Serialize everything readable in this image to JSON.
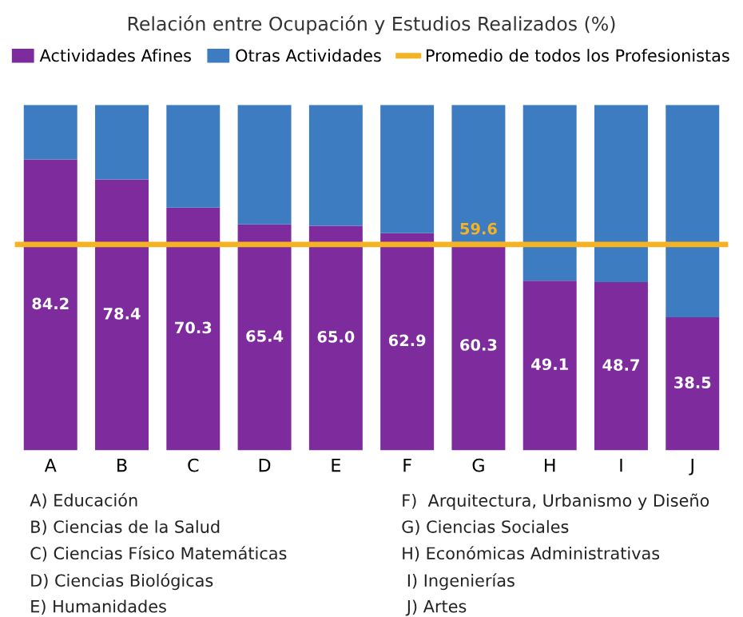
{
  "chart_data": {
    "type": "bar",
    "stacked": true,
    "title": "Relación entre Ocupación y Estudios Realizados (%)",
    "categories": [
      "A",
      "B",
      "C",
      "D",
      "E",
      "F",
      "G",
      "H",
      "I",
      "J"
    ],
    "series": [
      {
        "name": "Actividades Afines",
        "color": "#7e2b9e",
        "values": [
          84.2,
          78.4,
          70.3,
          65.4,
          65.0,
          62.9,
          60.3,
          49.1,
          48.7,
          38.5
        ],
        "value_labels": [
          "84.2",
          "78.4",
          "70.3",
          "65.4",
          "65.0",
          "62.9",
          "60.3",
          "49.1",
          "48.7",
          "38.5"
        ]
      },
      {
        "name": "Otras Actividades",
        "color": "#3d7cc0",
        "values": [
          15.8,
          21.6,
          29.7,
          34.6,
          35.0,
          37.1,
          39.7,
          50.9,
          51.3,
          61.5
        ]
      }
    ],
    "ylim": [
      0,
      100
    ],
    "tick_labels": "x",
    "grid": false,
    "legend": "top",
    "ref_lines": [
      {
        "axis": "y",
        "value": 59.6,
        "label": "Promedio de todos los Profesionistas",
        "color": "#f5b324"
      }
    ],
    "annotations": [
      {
        "text": "59.6",
        "x": "G",
        "y": 59.6
      },
      "A) Educación",
      "B) Ciencias de la Salud",
      "C) Ciencias Físico Matemáticas",
      "D) Ciencias Biológicas",
      "E) Humanidades",
      "F)  Arquitectura, Urbanismo y Diseño",
      "G) Ciencias Sociales",
      "H) Económicas Administrativas",
      " I) Ingenierías",
      " J) Artes"
    ]
  }
}
